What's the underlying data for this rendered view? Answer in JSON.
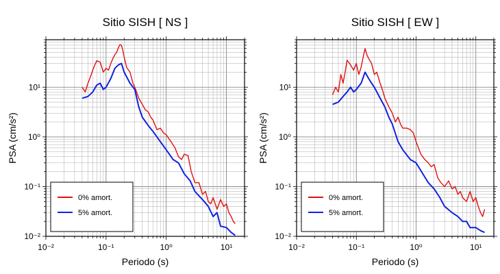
{
  "chart_data": [
    {
      "type": "line",
      "title": "Sitio SISH [ NS ]",
      "xlabel": "Periodo (s)",
      "ylabel": "PSA (cm/s²)",
      "xscale": "log",
      "yscale": "log",
      "xlim": [
        0.01,
        20
      ],
      "ylim": [
        0.01,
        90
      ],
      "grid": true,
      "legend_position": "bottom-left",
      "xticks": [
        "10⁻²",
        "10⁻¹",
        "10⁰",
        "10¹"
      ],
      "yticks": [
        "10⁻²",
        "10⁻¹",
        "10⁰",
        "10¹"
      ],
      "series": [
        {
          "name": "0% amort.",
          "color": "#e01010",
          "x": [
            0.04,
            0.045,
            0.05,
            0.055,
            0.06,
            0.065,
            0.07,
            0.08,
            0.09,
            0.1,
            0.11,
            0.12,
            0.13,
            0.14,
            0.15,
            0.16,
            0.17,
            0.18,
            0.19,
            0.2,
            0.22,
            0.25,
            0.28,
            0.3,
            0.35,
            0.4,
            0.45,
            0.5,
            0.55,
            0.6,
            0.7,
            0.8,
            0.9,
            1.0,
            1.2,
            1.4,
            1.6,
            1.8,
            2.0,
            2.3,
            2.6,
            3.0,
            3.5,
            4.0,
            4.5,
            5.0,
            5.5,
            6.0,
            7.0,
            8.0,
            9.0,
            10.0,
            11.0,
            12.0,
            13.0,
            14.0
          ],
          "y": [
            10,
            8,
            12,
            16,
            22,
            28,
            34,
            32,
            20,
            24,
            22,
            30,
            38,
            45,
            50,
            62,
            72,
            70,
            55,
            40,
            25,
            20,
            12,
            10,
            6,
            4.5,
            3.5,
            3.2,
            2.5,
            2.2,
            1.4,
            1.5,
            1.2,
            1.1,
            0.8,
            0.6,
            0.4,
            0.35,
            0.45,
            0.42,
            0.2,
            0.12,
            0.12,
            0.07,
            0.08,
            0.05,
            0.045,
            0.06,
            0.035,
            0.055,
            0.04,
            0.045,
            0.03,
            0.025,
            0.02,
            0.018
          ]
        },
        {
          "name": "5% amort.",
          "color": "#1020e0",
          "x": [
            0.04,
            0.05,
            0.06,
            0.07,
            0.08,
            0.09,
            0.1,
            0.12,
            0.14,
            0.16,
            0.18,
            0.2,
            0.25,
            0.3,
            0.35,
            0.4,
            0.5,
            0.6,
            0.8,
            1.0,
            1.3,
            1.6,
            2.0,
            2.5,
            3.0,
            4.0,
            5.0,
            6.0,
            7.0,
            8.0,
            10.0,
            12.0,
            14.0
          ],
          "y": [
            6,
            6.5,
            8,
            11,
            12,
            9,
            10,
            15,
            24,
            28,
            30,
            20,
            12,
            9,
            4,
            2.5,
            1.7,
            1.3,
            0.8,
            0.55,
            0.35,
            0.3,
            0.18,
            0.13,
            0.08,
            0.055,
            0.04,
            0.025,
            0.03,
            0.016,
            0.015,
            0.012,
            0.0105
          ]
        }
      ]
    },
    {
      "type": "line",
      "title": "Sitio SISH [ EW ]",
      "xlabel": "Periodo (s)",
      "ylabel": "PSA (cm/s²)",
      "xscale": "log",
      "yscale": "log",
      "xlim": [
        0.01,
        20
      ],
      "ylim": [
        0.01,
        90
      ],
      "grid": true,
      "legend_position": "bottom-left",
      "xticks": [
        "10⁻²",
        "10⁻¹",
        "10⁰",
        "10¹"
      ],
      "yticks": [
        "10⁻²",
        "10⁻¹",
        "10⁰",
        "10¹"
      ],
      "series": [
        {
          "name": "0% amort.",
          "color": "#e01010",
          "x": [
            0.04,
            0.045,
            0.05,
            0.055,
            0.06,
            0.065,
            0.07,
            0.08,
            0.09,
            0.1,
            0.11,
            0.12,
            0.13,
            0.14,
            0.15,
            0.16,
            0.18,
            0.2,
            0.22,
            0.25,
            0.28,
            0.3,
            0.35,
            0.4,
            0.45,
            0.5,
            0.55,
            0.6,
            0.7,
            0.8,
            0.9,
            1.0,
            1.2,
            1.4,
            1.6,
            1.8,
            2.0,
            2.3,
            2.6,
            3.0,
            3.5,
            4.0,
            4.5,
            5.0,
            5.5,
            6.0,
            7.0,
            8.0,
            9.0,
            10.0,
            11.0,
            12.0,
            13.0,
            14.0
          ],
          "y": [
            7,
            10,
            8,
            18,
            12,
            20,
            35,
            28,
            22,
            30,
            18,
            25,
            40,
            60,
            45,
            38,
            30,
            18,
            20,
            12,
            8,
            6,
            4,
            3,
            2,
            2.5,
            1.8,
            1.5,
            1.5,
            1.4,
            1.2,
            0.8,
            0.45,
            0.35,
            0.3,
            0.25,
            0.28,
            0.15,
            0.12,
            0.1,
            0.13,
            0.09,
            0.1,
            0.07,
            0.08,
            0.06,
            0.05,
            0.08,
            0.05,
            0.06,
            0.04,
            0.03,
            0.025,
            0.035
          ]
        },
        {
          "name": "5% amort.",
          "color": "#1020e0",
          "x": [
            0.04,
            0.05,
            0.06,
            0.07,
            0.08,
            0.09,
            0.1,
            0.12,
            0.14,
            0.16,
            0.18,
            0.2,
            0.25,
            0.3,
            0.35,
            0.4,
            0.5,
            0.6,
            0.8,
            1.0,
            1.3,
            1.6,
            2.0,
            2.5,
            3.0,
            4.0,
            5.0,
            6.0,
            7.0,
            8.0,
            10.0,
            12.0,
            14.0
          ],
          "y": [
            4.5,
            5,
            6.5,
            8,
            10,
            8,
            9,
            12,
            20,
            15,
            12,
            10,
            6,
            4,
            2.5,
            1.8,
            0.8,
            0.55,
            0.35,
            0.3,
            0.18,
            0.12,
            0.09,
            0.06,
            0.04,
            0.03,
            0.025,
            0.02,
            0.02,
            0.015,
            0.015,
            0.013,
            0.012
          ]
        }
      ]
    }
  ]
}
